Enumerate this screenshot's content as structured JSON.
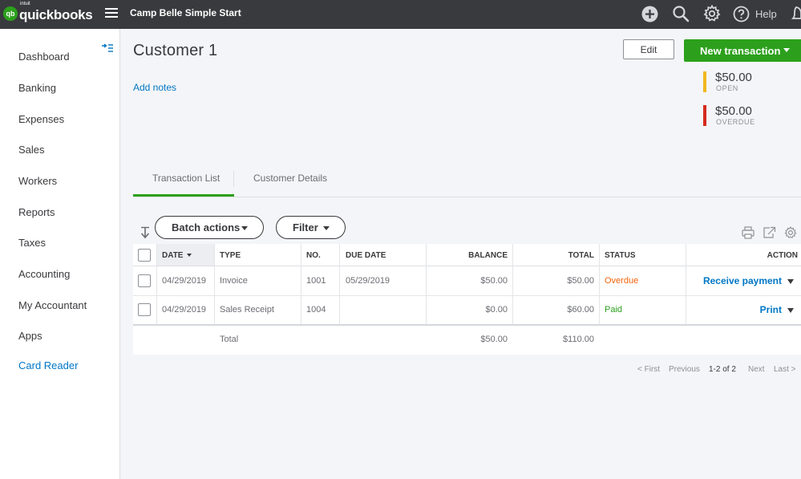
{
  "brand": {
    "intuit": "intuit",
    "name": "quickbooks",
    "logo_mark": "qb"
  },
  "company_name": "Camp Belle Simple Start",
  "topbar": {
    "help_label": "Help",
    "icons": [
      "plus-icon",
      "search-icon",
      "gear-icon",
      "help-icon",
      "bell-icon"
    ]
  },
  "sidebar": {
    "items": [
      {
        "label": "Dashboard"
      },
      {
        "label": "Banking"
      },
      {
        "label": "Expenses"
      },
      {
        "label": "Sales"
      },
      {
        "label": "Workers"
      },
      {
        "label": "Reports"
      },
      {
        "label": "Taxes"
      },
      {
        "label": "Accounting"
      },
      {
        "label": "My Accountant"
      },
      {
        "label": "Apps"
      },
      {
        "label": "Card Reader"
      }
    ]
  },
  "customer": {
    "name": "Customer 1",
    "add_notes": "Add notes",
    "edit_label": "Edit",
    "new_transaction_label": "New transaction",
    "open": {
      "amount": "$50.00",
      "label": "OPEN",
      "color": "#f2b720"
    },
    "overdue": {
      "amount": "$50.00",
      "label": "OVERDUE",
      "color": "#d52b1e"
    }
  },
  "tabs": [
    {
      "label": "Transaction List",
      "active": true
    },
    {
      "label": "Customer Details",
      "active": false
    }
  ],
  "toolbar": {
    "batch_actions": "Batch actions",
    "filter": "Filter"
  },
  "table": {
    "columns": [
      "DATE",
      "TYPE",
      "NO.",
      "DUE DATE",
      "BALANCE",
      "TOTAL",
      "STATUS",
      "ACTION"
    ],
    "rows": [
      {
        "date": "04/29/2019",
        "type": "Invoice",
        "no": "1001",
        "due_date": "05/29/2019",
        "balance": "$50.00",
        "total": "$50.00",
        "status": "Overdue",
        "status_color": "#f4640c",
        "action": "Receive payment"
      },
      {
        "date": "04/29/2019",
        "type": "Sales Receipt",
        "no": "1004",
        "due_date": "",
        "balance": "$0.00",
        "total": "$60.00",
        "status": "Paid",
        "status_color": "#2ca01c",
        "action": "Print"
      }
    ],
    "totals": {
      "label": "Total",
      "balance": "$50.00",
      "total": "$110.00"
    }
  },
  "pagination": {
    "first": "< First",
    "previous": "Previous",
    "range": "1-2 of 2",
    "next": "Next",
    "last": "Last >"
  },
  "colors": {
    "accent_green": "#2ca01c",
    "link_blue": "#0077c5",
    "topbar": "#393a3d"
  }
}
